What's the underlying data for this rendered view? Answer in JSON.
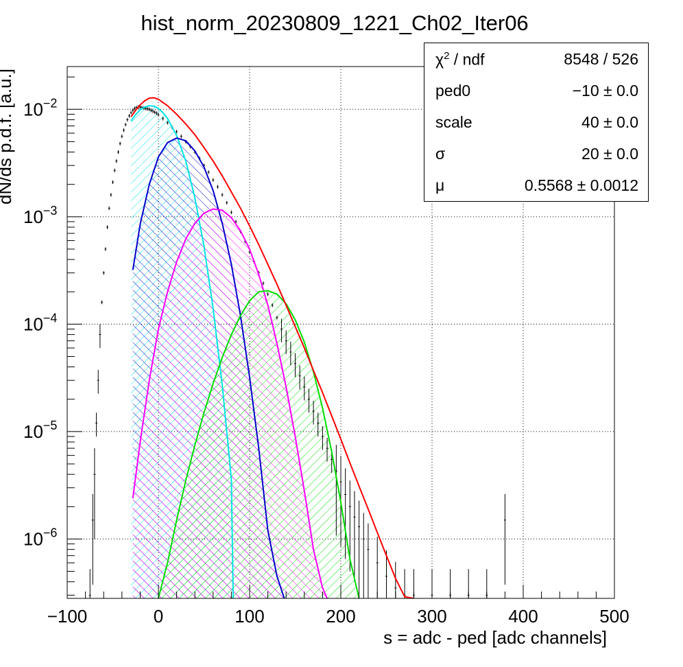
{
  "chart_data": {
    "type": "line",
    "title": "hist_norm_20230809_1221_Ch02_Iter06",
    "xlabel": "s = adc - ped [adc channels]",
    "ylabel": "dN/ds p.d.f. [a.u.]",
    "xlim": [
      -100,
      500
    ],
    "ylim": [
      2.8e-07,
      0.025
    ],
    "y_scale": "log",
    "grid": true,
    "x_ticks": [
      -100,
      0,
      100,
      200,
      300,
      400,
      500
    ],
    "x_tick_labels": [
      "−100",
      "0",
      "100",
      "200",
      "300",
      "400",
      "500"
    ],
    "y_ticks": [
      {
        "value": 1e-06,
        "base": "10",
        "exp": "−6"
      },
      {
        "value": 1e-05,
        "base": "10",
        "exp": "−5"
      },
      {
        "value": 0.0001,
        "base": "10",
        "exp": "−4"
      },
      {
        "value": 0.001,
        "base": "10",
        "exp": "−3"
      },
      {
        "value": 0.01,
        "base": "10",
        "exp": "−2"
      }
    ],
    "histogram": {
      "color": "#000000",
      "x": [
        -75,
        -72,
        -70,
        -68,
        -66,
        -64,
        -62,
        -60,
        -58,
        -56,
        -54,
        -52,
        -50,
        -48,
        -46,
        -44,
        -42,
        -40,
        -38,
        -36,
        -34,
        -32,
        -30,
        -28,
        -26,
        -24,
        -22,
        -20,
        -18,
        -16,
        -14,
        -12,
        -10,
        -8,
        -6,
        -4,
        -2,
        0,
        5,
        10,
        15,
        20,
        25,
        30,
        35,
        40,
        45,
        50,
        55,
        60,
        65,
        70,
        75,
        80,
        85,
        90,
        95,
        100,
        105,
        110,
        115,
        120,
        125,
        130,
        135,
        140,
        145,
        150,
        155,
        160,
        165,
        170,
        175,
        180,
        185,
        190,
        195,
        200,
        205,
        210,
        215,
        220,
        225,
        230,
        240,
        250,
        260,
        270,
        280,
        300,
        320,
        340,
        360,
        380
      ],
      "y": [
        3e-07,
        1.5e-06,
        4e-06,
        1.2e-05,
        3e-05,
        8e-05,
        0.00016,
        0.0003,
        0.0005,
        0.0008,
        0.0012,
        0.0016,
        0.0021,
        0.0027,
        0.0033,
        0.004,
        0.0048,
        0.0056,
        0.0064,
        0.0072,
        0.008,
        0.0087,
        0.0093,
        0.0098,
        0.0102,
        0.0104,
        0.0105,
        0.0105,
        0.0104,
        0.0103,
        0.0102,
        0.0101,
        0.01,
        0.0098,
        0.0096,
        0.0094,
        0.0092,
        0.0089,
        0.0082,
        0.0075,
        0.0068,
        0.0062,
        0.0056,
        0.005,
        0.0045,
        0.004,
        0.0035,
        0.003,
        0.0026,
        0.0022,
        0.0019,
        0.0016,
        0.00135,
        0.0011,
        0.0009,
        0.00073,
        0.00059,
        0.00047,
        0.00038,
        0.0003,
        0.00024,
        0.00019,
        0.00015,
        0.000115,
        9e-05,
        7e-05,
        5.5e-05,
        4.3e-05,
        3.3e-05,
        2.6e-05,
        2e-05,
        1.55e-05,
        1.2e-05,
        9e-06,
        7e-06,
        5.5e-06,
        4.3e-06,
        3.4e-06,
        2.6e-06,
        2e-06,
        1.6e-06,
        1.3e-06,
        1e-06,
        8e-07,
        6e-07,
        4.5e-07,
        3.5e-07,
        3e-07,
        3e-07,
        3e-07,
        3e-07,
        3e-07,
        3e-07,
        1.5e-06
      ]
    },
    "series": [
      {
        "color": "#ff0000",
        "hatch": false,
        "x": [
          -30,
          -25,
          -20,
          -15,
          -10,
          -5,
          0,
          10,
          20,
          30,
          40,
          50,
          60,
          70,
          80,
          90,
          100,
          110,
          120,
          130,
          140,
          150,
          160,
          170,
          180,
          190,
          200,
          210,
          220,
          230,
          240,
          250,
          260,
          270,
          280
        ],
        "y": [
          0.0085,
          0.0098,
          0.011,
          0.012,
          0.0127,
          0.0128,
          0.0124,
          0.0108,
          0.009,
          0.0073,
          0.0058,
          0.0044,
          0.0033,
          0.0024,
          0.0017,
          0.0012,
          0.00082,
          0.00055,
          0.00036,
          0.000235,
          0.00015,
          9.5e-05,
          6e-05,
          3.7e-05,
          2.3e-05,
          1.4e-05,
          8.5e-06,
          5.1e-06,
          3.1e-06,
          1.9e-06,
          1.15e-06,
          7e-07,
          4.3e-07,
          2.9e-07,
          2.8e-07
        ]
      },
      {
        "color": "#00e5e5",
        "hatch": true,
        "x": [
          -30,
          -25,
          -20,
          -15,
          -10,
          -5,
          0,
          5,
          10,
          20,
          30,
          40,
          50,
          60,
          70,
          80,
          82
        ],
        "y": [
          0.0078,
          0.0089,
          0.0099,
          0.0105,
          0.0108,
          0.0107,
          0.0102,
          0.0093,
          0.0082,
          0.0057,
          0.0033,
          0.0015,
          0.00053,
          0.00014,
          2.7e-05,
          3.6e-06,
          2.8e-07
        ]
      },
      {
        "color": "#0000cc",
        "hatch": true,
        "x": [
          -28,
          -20,
          -10,
          0,
          10,
          20,
          30,
          40,
          50,
          60,
          70,
          80,
          90,
          100,
          110,
          120,
          130,
          138
        ],
        "y": [
          0.00032,
          0.00085,
          0.002,
          0.0036,
          0.0049,
          0.0054,
          0.0051,
          0.0041,
          0.0029,
          0.00175,
          0.00087,
          0.00036,
          0.00012,
          3.2e-05,
          7e-06,
          1.2e-06,
          4.5e-07,
          2.8e-07
        ]
      },
      {
        "color": "#ff00ff",
        "hatch": true,
        "x": [
          -28,
          -20,
          -10,
          0,
          10,
          20,
          30,
          40,
          50,
          60,
          70,
          80,
          90,
          100,
          110,
          120,
          130,
          140,
          150,
          160,
          170,
          180,
          185
        ],
        "y": [
          2.4e-06,
          8e-06,
          3e-05,
          9e-05,
          0.0002,
          0.00038,
          0.00062,
          0.00087,
          0.00108,
          0.00118,
          0.00115,
          0.00098,
          0.00074,
          0.0005,
          0.00029,
          0.00015,
          6.6e-05,
          2.6e-05,
          9e-06,
          2.8e-06,
          8e-07,
          3.5e-07,
          2.8e-07
        ]
      },
      {
        "color": "#00dd00",
        "hatch": true,
        "x": [
          0,
          10,
          20,
          30,
          40,
          50,
          60,
          70,
          80,
          90,
          100,
          110,
          120,
          130,
          140,
          150,
          160,
          170,
          180,
          190,
          200,
          210,
          220
        ],
        "y": [
          2.8e-07,
          6e-07,
          1.5e-06,
          3.5e-06,
          7.5e-06,
          1.5e-05,
          2.8e-05,
          4.9e-05,
          8e-05,
          0.00012,
          0.000165,
          0.0002,
          0.000205,
          0.00019,
          0.000155,
          0.00011,
          6.8e-05,
          3.6e-05,
          1.65e-05,
          6.5e-06,
          2.2e-06,
          6.5e-07,
          2.8e-07
        ]
      }
    ]
  },
  "stats": {
    "rows": [
      {
        "label_main": "χ",
        "label_sup": "2",
        "label_rest": " / ndf",
        "value": "8548 / 526"
      },
      {
        "label_main": "ped0",
        "label_sup": "",
        "label_rest": "",
        "value": "−10 ± 0.0"
      },
      {
        "label_main": "scale",
        "label_sup": "",
        "label_rest": "",
        "value": "40 ± 0.0"
      },
      {
        "label_main": "σ",
        "label_sup": "",
        "label_rest": "",
        "value": "20 ± 0.0"
      },
      {
        "label_main": "μ",
        "label_sup": "",
        "label_rest": "",
        "value": "0.5568 ± 0.0012"
      }
    ]
  }
}
